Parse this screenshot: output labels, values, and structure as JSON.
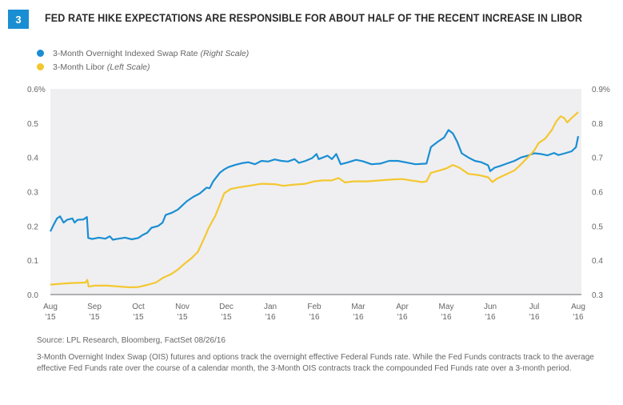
{
  "header": {
    "badge": "3",
    "title": "FED RATE HIKE EXPECTATIONS ARE RESPONSIBLE FOR ABOUT HALF OF THE RECENT INCREASE IN LIBOR"
  },
  "legend": [
    {
      "label": "3-Month Overnight Indexed Swap Rate",
      "note": "(Right Scale)",
      "color": "#1a8ed3"
    },
    {
      "label": "3-Month Libor",
      "note": "(Left Scale)",
      "color": "#f4c730"
    }
  ],
  "footer": {
    "source": "Source: LPL Research, Bloomberg, FactSet   08/26/16",
    "note": "3-Month Overnight Index Swap (OIS) futures and options track the overnight effective Federal Funds rate. While the Fed Funds contracts track to the average effective Fed Funds rate over the course of a calendar month, the 3-Month OIS contracts track the compounded Fed Funds rate over a 3-month period."
  },
  "chart_data": {
    "type": "line",
    "title": "FED RATE HIKE EXPECTATIONS ARE RESPONSIBLE FOR ABOUT HALF OF THE RECENT INCREASE IN LIBOR",
    "xlabel": "",
    "x_unit": "months since Aug '15",
    "categories": [
      "Aug\n'15",
      "Sep\n'15",
      "Oct\n'15",
      "Nov\n'15",
      "Dec\n'15",
      "Jan\n'16",
      "Feb\n'16",
      "Mar\n'16",
      "Apr\n'16",
      "May\n'16",
      "Jun\n'16",
      "Jul\n'16",
      "Aug\n'16"
    ],
    "left_axis": {
      "label": "3-Month Libor",
      "ylim": [
        0.0,
        0.6
      ],
      "ticks": [
        "0.0",
        "0.1",
        "0.2",
        "0.3",
        "0.4",
        "0.5",
        "0.6%"
      ]
    },
    "right_axis": {
      "label": "3-Month OIS",
      "ylim": [
        0.3,
        0.9
      ],
      "ticks": [
        "0.3",
        "0.4",
        "0.5",
        "0.6",
        "0.7",
        "0.8",
        "0.9%"
      ]
    },
    "grid": false,
    "legend_position": "top-left",
    "series": [
      {
        "name": "3-Month Overnight Indexed Swap Rate (Right Scale)",
        "axis": "right",
        "color": "#1a8ed3",
        "points": [
          [
            0.0,
            0.484
          ],
          [
            0.08,
            0.505
          ],
          [
            0.15,
            0.522
          ],
          [
            0.22,
            0.528
          ],
          [
            0.3,
            0.51
          ],
          [
            0.38,
            0.518
          ],
          [
            0.5,
            0.522
          ],
          [
            0.55,
            0.51
          ],
          [
            0.62,
            0.518
          ],
          [
            0.75,
            0.519
          ],
          [
            0.83,
            0.526
          ],
          [
            0.86,
            0.465
          ],
          [
            0.95,
            0.462
          ],
          [
            1.1,
            0.466
          ],
          [
            1.25,
            0.463
          ],
          [
            1.35,
            0.47
          ],
          [
            1.42,
            0.46
          ],
          [
            1.55,
            0.463
          ],
          [
            1.7,
            0.466
          ],
          [
            1.85,
            0.461
          ],
          [
            2.0,
            0.465
          ],
          [
            2.1,
            0.474
          ],
          [
            2.2,
            0.48
          ],
          [
            2.3,
            0.495
          ],
          [
            2.45,
            0.5
          ],
          [
            2.55,
            0.51
          ],
          [
            2.62,
            0.532
          ],
          [
            2.75,
            0.538
          ],
          [
            2.9,
            0.548
          ],
          [
            3.0,
            0.56
          ],
          [
            3.1,
            0.572
          ],
          [
            3.25,
            0.585
          ],
          [
            3.4,
            0.595
          ],
          [
            3.55,
            0.612
          ],
          [
            3.62,
            0.61
          ],
          [
            3.7,
            0.63
          ],
          [
            3.85,
            0.655
          ],
          [
            3.95,
            0.665
          ],
          [
            4.05,
            0.672
          ],
          [
            4.2,
            0.678
          ],
          [
            4.35,
            0.683
          ],
          [
            4.5,
            0.686
          ],
          [
            4.65,
            0.68
          ],
          [
            4.8,
            0.69
          ],
          [
            4.95,
            0.688
          ],
          [
            5.1,
            0.694
          ],
          [
            5.25,
            0.69
          ],
          [
            5.4,
            0.688
          ],
          [
            5.55,
            0.695
          ],
          [
            5.65,
            0.684
          ],
          [
            5.8,
            0.69
          ],
          [
            5.95,
            0.698
          ],
          [
            6.05,
            0.71
          ],
          [
            6.1,
            0.695
          ],
          [
            6.2,
            0.7
          ],
          [
            6.3,
            0.705
          ],
          [
            6.4,
            0.695
          ],
          [
            6.5,
            0.71
          ],
          [
            6.6,
            0.68
          ],
          [
            6.75,
            0.685
          ],
          [
            6.95,
            0.693
          ],
          [
            7.1,
            0.689
          ],
          [
            7.3,
            0.68
          ],
          [
            7.5,
            0.682
          ],
          [
            7.7,
            0.69
          ],
          [
            7.9,
            0.69
          ],
          [
            8.1,
            0.685
          ],
          [
            8.3,
            0.68
          ],
          [
            8.55,
            0.682
          ],
          [
            8.65,
            0.73
          ],
          [
            8.8,
            0.745
          ],
          [
            8.95,
            0.758
          ],
          [
            9.05,
            0.78
          ],
          [
            9.15,
            0.77
          ],
          [
            9.25,
            0.745
          ],
          [
            9.35,
            0.712
          ],
          [
            9.5,
            0.7
          ],
          [
            9.65,
            0.69
          ],
          [
            9.8,
            0.686
          ],
          [
            9.95,
            0.677
          ],
          [
            10.0,
            0.66
          ],
          [
            10.1,
            0.67
          ],
          [
            10.25,
            0.676
          ],
          [
            10.4,
            0.683
          ],
          [
            10.55,
            0.69
          ],
          [
            10.7,
            0.7
          ],
          [
            10.85,
            0.705
          ],
          [
            11.0,
            0.712
          ],
          [
            11.15,
            0.71
          ],
          [
            11.3,
            0.706
          ],
          [
            11.45,
            0.713
          ],
          [
            11.55,
            0.707
          ],
          [
            11.7,
            0.712
          ],
          [
            11.85,
            0.718
          ],
          [
            11.95,
            0.73
          ],
          [
            12.0,
            0.762
          ]
        ]
      },
      {
        "name": "3-Month Libor (Left Scale)",
        "axis": "left",
        "color": "#f4c730",
        "points": [
          [
            0.0,
            0.029
          ],
          [
            0.2,
            0.031
          ],
          [
            0.4,
            0.033
          ],
          [
            0.6,
            0.034
          ],
          [
            0.8,
            0.035
          ],
          [
            0.84,
            0.043
          ],
          [
            0.87,
            0.023
          ],
          [
            1.0,
            0.026
          ],
          [
            1.3,
            0.026
          ],
          [
            1.6,
            0.023
          ],
          [
            1.8,
            0.021
          ],
          [
            2.0,
            0.022
          ],
          [
            2.2,
            0.028
          ],
          [
            2.4,
            0.035
          ],
          [
            2.55,
            0.048
          ],
          [
            2.75,
            0.06
          ],
          [
            2.9,
            0.073
          ],
          [
            3.05,
            0.09
          ],
          [
            3.2,
            0.105
          ],
          [
            3.35,
            0.124
          ],
          [
            3.5,
            0.165
          ],
          [
            3.6,
            0.195
          ],
          [
            3.75,
            0.23
          ],
          [
            3.85,
            0.262
          ],
          [
            3.95,
            0.295
          ],
          [
            4.1,
            0.308
          ],
          [
            4.3,
            0.313
          ],
          [
            4.55,
            0.318
          ],
          [
            4.8,
            0.323
          ],
          [
            5.1,
            0.322
          ],
          [
            5.3,
            0.317
          ],
          [
            5.5,
            0.32
          ],
          [
            5.8,
            0.323
          ],
          [
            6.0,
            0.33
          ],
          [
            6.2,
            0.333
          ],
          [
            6.4,
            0.333
          ],
          [
            6.55,
            0.34
          ],
          [
            6.7,
            0.327
          ],
          [
            6.9,
            0.33
          ],
          [
            7.2,
            0.33
          ],
          [
            7.5,
            0.333
          ],
          [
            7.8,
            0.336
          ],
          [
            8.0,
            0.337
          ],
          [
            8.2,
            0.333
          ],
          [
            8.45,
            0.328
          ],
          [
            8.55,
            0.33
          ],
          [
            8.65,
            0.355
          ],
          [
            8.85,
            0.362
          ],
          [
            9.0,
            0.368
          ],
          [
            9.15,
            0.378
          ],
          [
            9.3,
            0.37
          ],
          [
            9.5,
            0.352
          ],
          [
            9.75,
            0.348
          ],
          [
            9.95,
            0.342
          ],
          [
            10.05,
            0.328
          ],
          [
            10.15,
            0.338
          ],
          [
            10.35,
            0.35
          ],
          [
            10.55,
            0.362
          ],
          [
            10.7,
            0.38
          ],
          [
            10.85,
            0.4
          ],
          [
            11.0,
            0.42
          ],
          [
            11.1,
            0.442
          ],
          [
            11.25,
            0.455
          ],
          [
            11.4,
            0.48
          ],
          [
            11.5,
            0.505
          ],
          [
            11.6,
            0.52
          ],
          [
            11.68,
            0.515
          ],
          [
            11.75,
            0.502
          ],
          [
            11.85,
            0.515
          ],
          [
            12.0,
            0.532
          ]
        ]
      }
    ]
  }
}
